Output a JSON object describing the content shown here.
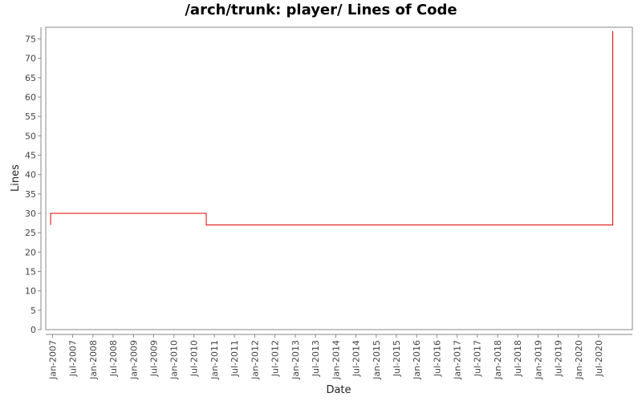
{
  "chart_data": {
    "type": "line",
    "title": "/arch/trunk: player/ Lines of Code",
    "xlabel": "Date",
    "ylabel": "Lines",
    "ylim": [
      0,
      78
    ],
    "yticks": [
      0,
      5,
      10,
      15,
      20,
      25,
      30,
      35,
      40,
      45,
      50,
      55,
      60,
      65,
      70,
      75
    ],
    "xlim": [
      "2006-11-01",
      "2021-05-01"
    ],
    "xticks": [
      {
        "date": "2007-01-01",
        "label": "Jan-2007"
      },
      {
        "date": "2007-07-01",
        "label": "Jul-2007"
      },
      {
        "date": "2008-01-01",
        "label": "Jan-2008"
      },
      {
        "date": "2008-07-01",
        "label": "Jul-2008"
      },
      {
        "date": "2009-01-01",
        "label": "Jan-2009"
      },
      {
        "date": "2009-07-01",
        "label": "Jul-2009"
      },
      {
        "date": "2010-01-01",
        "label": "Jan-2010"
      },
      {
        "date": "2010-07-01",
        "label": "Jul-2010"
      },
      {
        "date": "2011-01-01",
        "label": "Jan-2011"
      },
      {
        "date": "2011-07-01",
        "label": "Jul-2011"
      },
      {
        "date": "2012-01-01",
        "label": "Jan-2012"
      },
      {
        "date": "2012-07-01",
        "label": "Jul-2012"
      },
      {
        "date": "2013-01-01",
        "label": "Jan-2013"
      },
      {
        "date": "2013-07-01",
        "label": "Jul-2013"
      },
      {
        "date": "2014-01-01",
        "label": "Jan-2014"
      },
      {
        "date": "2014-07-01",
        "label": "Jul-2014"
      },
      {
        "date": "2015-01-01",
        "label": "Jan-2015"
      },
      {
        "date": "2015-07-01",
        "label": "Jul-2015"
      },
      {
        "date": "2016-01-01",
        "label": "Jan-2016"
      },
      {
        "date": "2016-07-01",
        "label": "Jul-2016"
      },
      {
        "date": "2017-01-01",
        "label": "Jan-2017"
      },
      {
        "date": "2017-07-01",
        "label": "Jul-2017"
      },
      {
        "date": "2018-01-01",
        "label": "Jan-2018"
      },
      {
        "date": "2018-07-01",
        "label": "Jul-2018"
      },
      {
        "date": "2019-01-01",
        "label": "Jan-2019"
      },
      {
        "date": "2019-07-01",
        "label": "Jul-2019"
      },
      {
        "date": "2020-01-01",
        "label": "Jan-2020"
      },
      {
        "date": "2020-07-01",
        "label": "Jul-2020"
      }
    ],
    "series": [
      {
        "color": "#dd0000",
        "points": [
          {
            "x": "2006-12-15",
            "y": 27
          },
          {
            "x": "2006-12-15",
            "y": 30
          },
          {
            "x": "2010-10-20",
            "y": 30
          },
          {
            "x": "2010-10-20",
            "y": 27
          },
          {
            "x": "2020-11-05",
            "y": 27
          },
          {
            "x": "2020-11-05",
            "y": 77
          }
        ]
      }
    ],
    "grid": false,
    "legend": "none"
  }
}
